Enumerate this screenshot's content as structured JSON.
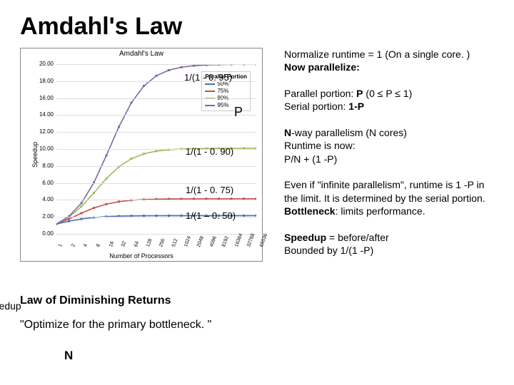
{
  "title": "Amdahl's Law",
  "chart": {
    "title": "Amdahl's Law",
    "ylabel": "Speedup",
    "xlabel": "Number of Processors",
    "ylim": [
      0,
      20
    ],
    "ytick_step": 2,
    "ytick_labels": [
      "0.00",
      "2.00",
      "4.00",
      "6.00",
      "8.00",
      "10.00",
      "12.00",
      "14.00",
      "16.00",
      "18.00",
      "20.00"
    ],
    "xticks": [
      1,
      2,
      4,
      8,
      16,
      32,
      64,
      128,
      256,
      512,
      1024,
      2048,
      4096,
      8192,
      16384,
      32768,
      65536
    ],
    "legend_title": "Parallel Portion",
    "series": [
      {
        "label": "50%",
        "color": "#4a6db8",
        "p": 0.5
      },
      {
        "label": "75%",
        "color": "#c0504d",
        "p": 0.75
      },
      {
        "label": "90%",
        "color": "#9bbb59",
        "p": 0.9
      },
      {
        "label": "95%",
        "color": "#8064a2",
        "p": 0.95
      }
    ],
    "grid_color": "#dddddd",
    "border_color": "#888888",
    "bg": "#ffffff",
    "tick_fontsize": 8
  },
  "annotations": {
    "a95": "1/(1 - 0. 95)",
    "P": "P",
    "a90": "1/(1 - 0. 90)",
    "a75": "1/(1 - 0. 75)",
    "a50": "1/(1 – 0. 50)"
  },
  "side_labels": {
    "speedup": "speedup",
    "N": "N"
  },
  "right_text": {
    "p1a": "Normalize runtime = 1 (On a single core. )",
    "p1b": "Now parallelize:",
    "p2a": "Parallel portion: ",
    "p2b": " (0 ≤ P ≤ 1)",
    "p2c": "Serial portion: ",
    "p2d": "1-P",
    "p3a": "-way parallelism (N cores)",
    "p3b": "Runtime is now:",
    "p3c": "   P/N + (1 -P)",
    "p4a": "Even if \"infinite parallelism\", runtime is 1 -P in the limit.  It is determined by the serial portion.",
    "p4b": "Bottleneck",
    "p4c": ": limits performance.",
    "p5a": "Speedup",
    "p5b": " = before/after",
    "p5c": "Bounded by 1/(1 -P)"
  },
  "below": {
    "law": "Law of Diminishing Returns",
    "quote": "\"Optimize for the primary bottleneck. \""
  },
  "letters": {
    "P": "P",
    "N": "N"
  }
}
